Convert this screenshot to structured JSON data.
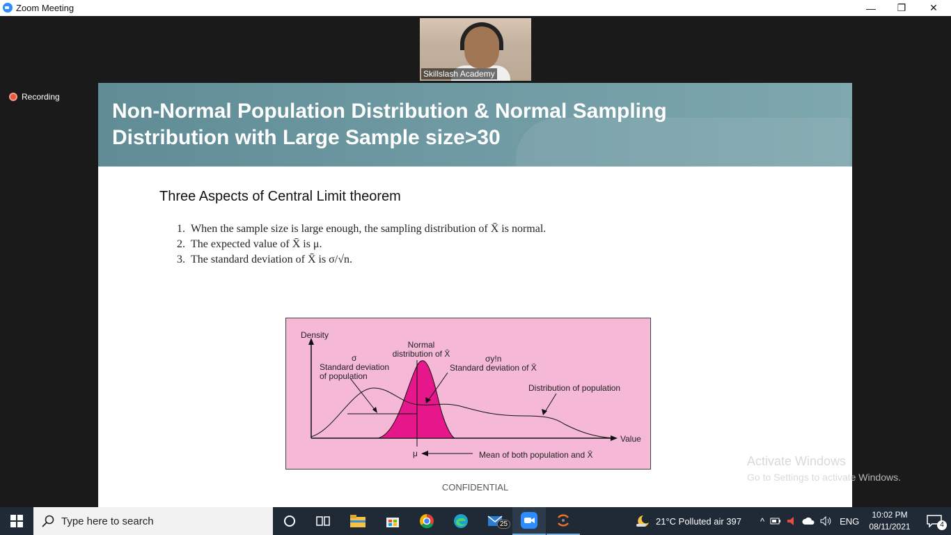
{
  "window": {
    "title": "Zoom Meeting",
    "minimize_glyph": "—",
    "restore_glyph": "❐",
    "close_glyph": "✕"
  },
  "video": {
    "participant_name": "Skillslash Academy"
  },
  "recording": {
    "label": "Recording"
  },
  "slide": {
    "title_line1": "Non-Normal Population Distribution & Normal Sampling",
    "title_line2": "Distribution with Large Sample size>30",
    "subtitle": "Three Aspects of Central Limit theorem",
    "aspects": [
      {
        "num": "1.",
        "text": "When the sample size is large enough, the sampling distribution of X̄ is normal."
      },
      {
        "num": "2.",
        "text": "The expected value of X̄ is μ."
      },
      {
        "num": "3.",
        "text": "The standard deviation of X̄ is σ/√n."
      }
    ],
    "figure": {
      "density": "Density",
      "normal_line1": "Normal",
      "normal_line2": "distribution of X̄",
      "sigma": "σ",
      "sd_pop_line1": "Standard deviation",
      "sd_pop_line2": "of population",
      "sigma_n": "σy!n",
      "sd_xbar": "Standard deviation of X̄",
      "dist_pop": "Distribution of population",
      "value": "Value",
      "mu": "μ",
      "mean_both": "Mean of both population and X̄"
    },
    "confidential": "CONFIDENTIAL"
  },
  "watermark": {
    "line1": "Activate Windows",
    "line2": "Go to Settings to activate Windows."
  },
  "taskbar": {
    "search_placeholder": "Type here to search",
    "mail_badge": "25",
    "weather": "21°C  Polluted air 397",
    "language": "ENG",
    "time": "10:02 PM",
    "date": "08/11/2021",
    "notification_count": "4"
  }
}
